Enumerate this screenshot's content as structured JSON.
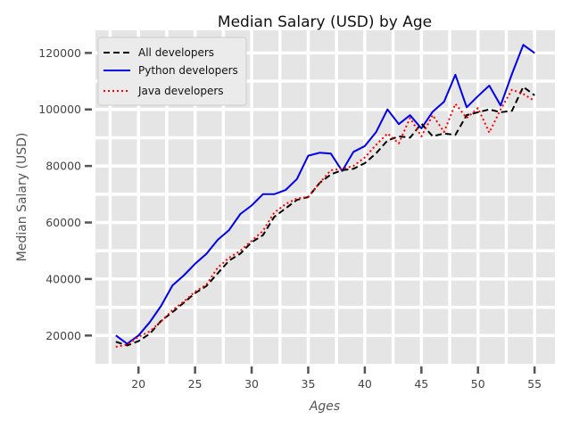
{
  "chart_data": {
    "type": "line",
    "title": "Median Salary (USD) by Age",
    "xlabel": "Ages",
    "ylabel": "Median Salary (USD)",
    "xlim": [
      16.2,
      56.8
    ],
    "ylim": [
      10000,
      128000
    ],
    "xticks": [
      20,
      25,
      30,
      35,
      40,
      45,
      50,
      55
    ],
    "yticks": [
      20000,
      40000,
      60000,
      80000,
      100000,
      120000
    ],
    "grid": true,
    "legend_position": "top-left",
    "background": "#e5e5e5",
    "x": [
      18,
      19,
      20,
      21,
      22,
      23,
      24,
      25,
      26,
      27,
      28,
      29,
      30,
      31,
      32,
      33,
      34,
      35,
      36,
      37,
      38,
      39,
      40,
      41,
      42,
      43,
      44,
      45,
      46,
      47,
      48,
      49,
      50,
      51,
      52,
      53,
      54,
      55
    ],
    "series": [
      {
        "name": "All developers",
        "color": "#000000",
        "style": "dashed",
        "values": [
          17784,
          16500,
          18012,
          20628,
          25206,
          28266,
          31590,
          35000,
          37500,
          42000,
          46500,
          49000,
          53000,
          55500,
          62000,
          65000,
          68000,
          69000,
          74000,
          77000,
          78500,
          79000,
          81000,
          84500,
          89000,
          90500,
          90000,
          95000,
          90500,
          91500,
          91000,
          98000,
          99000,
          100000,
          99000,
          99500,
          108000,
          105000
        ]
      },
      {
        "name": "Python developers",
        "color": "#0000ee",
        "style": "solid",
        "values": [
          20046,
          17100,
          20000,
          24744,
          30500,
          37732,
          41247,
          45372,
          48876,
          53850,
          57287,
          63016,
          65998,
          70003,
          70000,
          71496,
          75370,
          83640,
          84666,
          84392,
          78254,
          85000,
          87038,
          91991,
          100000,
          94796,
          97962,
          93302,
          99240,
          102736,
          112285,
          100771,
          104708,
          108423,
          101407,
          112542,
          122870,
          120000
        ]
      },
      {
        "name": "Java developers",
        "color": "#ff0000",
        "style": "dotted",
        "values": [
          16000,
          16800,
          19500,
          21500,
          25000,
          29000,
          32000,
          35500,
          38000,
          44000,
          47500,
          50000,
          53500,
          57000,
          63500,
          66500,
          68500,
          69000,
          74000,
          78500,
          79000,
          80000,
          83000,
          87500,
          91500,
          88000,
          97000,
          90500,
          98000,
          92000,
          102000,
          97000,
          100500,
          91800,
          100000,
          107000,
          105500,
          103000
        ]
      }
    ]
  }
}
